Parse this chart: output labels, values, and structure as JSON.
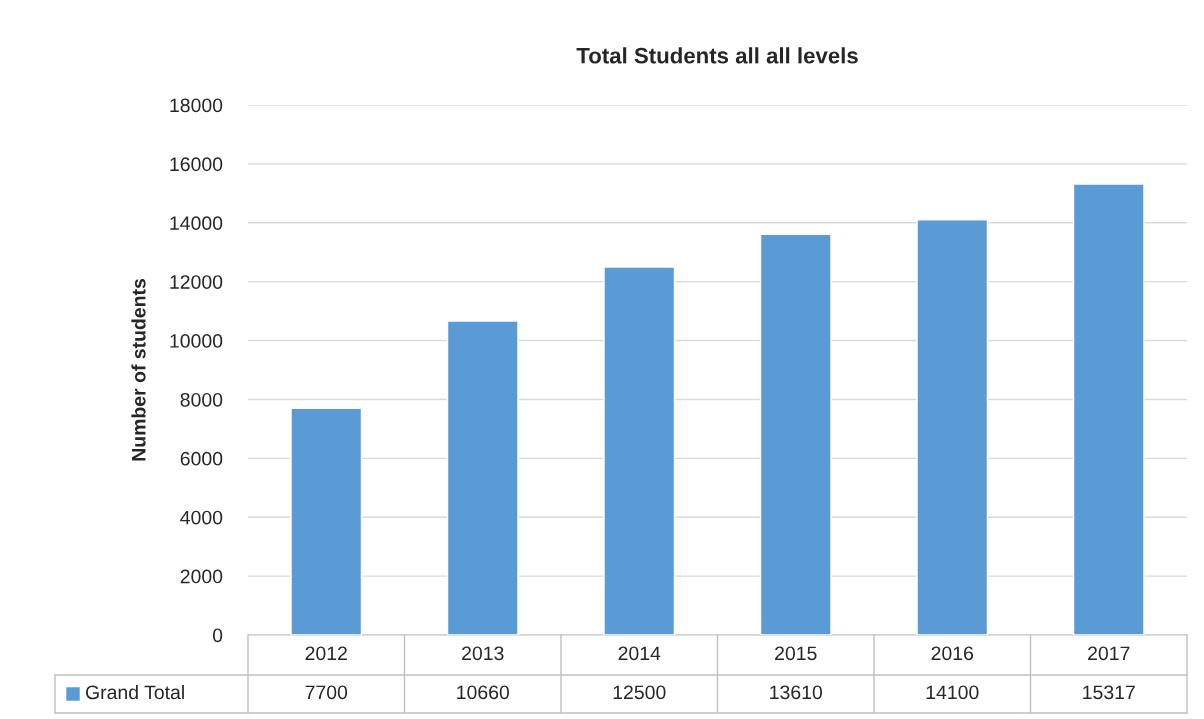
{
  "chart_data": {
    "type": "bar",
    "title": "Total Students all all levels",
    "ylabel": "Number of students",
    "categories": [
      "2012",
      "2013",
      "2014",
      "2015",
      "2016",
      "2017"
    ],
    "series": [
      {
        "name": "Grand Total",
        "color": "#5b9bd5",
        "values": [
          7700,
          10660,
          12500,
          13610,
          14100,
          15317
        ]
      }
    ],
    "ylim": [
      0,
      18000
    ],
    "yticks": [
      0,
      2000,
      4000,
      6000,
      8000,
      10000,
      12000,
      14000,
      16000,
      18000
    ],
    "grid": "y",
    "legend": "bottom",
    "data_labels": true
  }
}
